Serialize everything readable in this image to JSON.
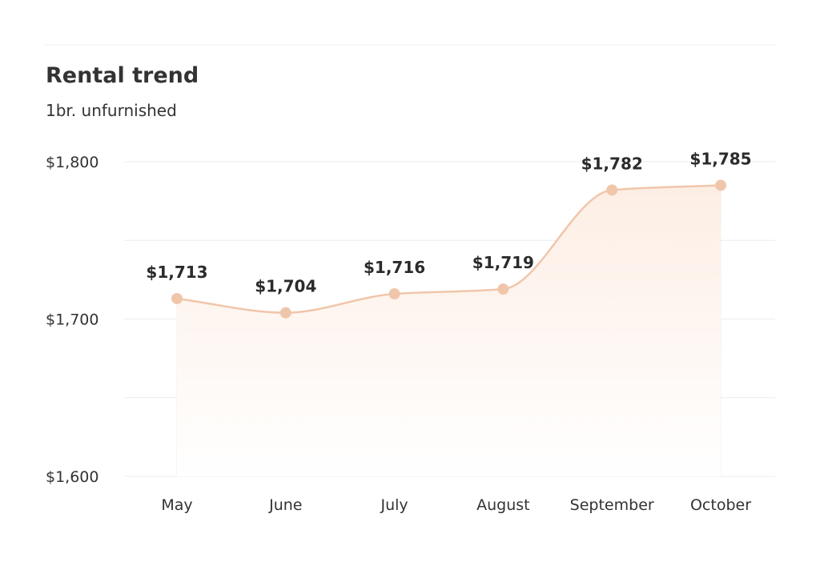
{
  "chart_data": {
    "type": "line",
    "title": "Rental trend",
    "subtitle": "1br. unfurnished",
    "categories": [
      "May",
      "June",
      "July",
      "August",
      "September",
      "October"
    ],
    "values": [
      1713,
      1704,
      1716,
      1719,
      1782,
      1785
    ],
    "data_labels": [
      "$1,713",
      "$1,704",
      "$1,716",
      "$1,719",
      "$1,782",
      "$1,785"
    ],
    "ylim": [
      1600,
      1800
    ],
    "yticks": [
      1600,
      1700,
      1800
    ],
    "ytick_labels": [
      "$1,600",
      "$1,700",
      "$1,800"
    ],
    "grid": true,
    "area_fill": true,
    "colors": {
      "line": "#f0c6ab",
      "marker": "#f0c6ab",
      "area_top": "#fdeee4",
      "area_bottom": "#ffffff",
      "grid": "#ececec",
      "text": "#333333"
    }
  }
}
